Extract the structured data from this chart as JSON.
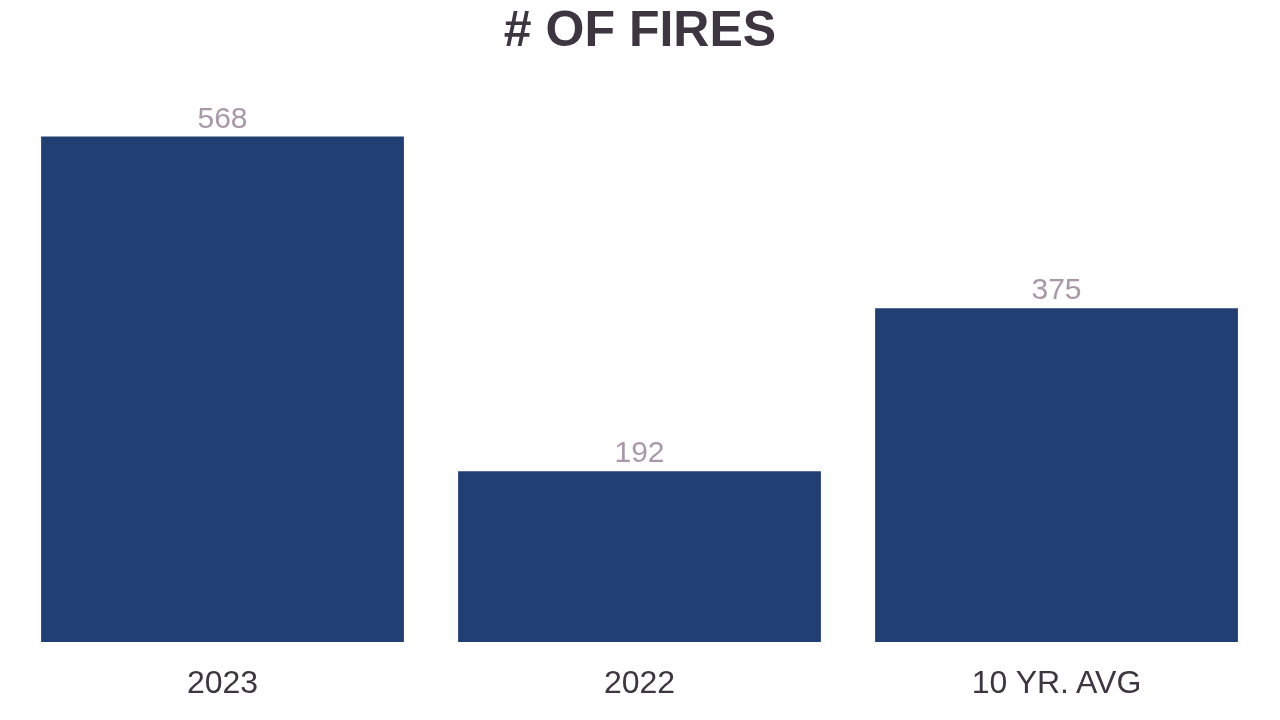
{
  "chart_data": {
    "type": "bar",
    "title": "# OF FIRES",
    "categories": [
      "2023",
      "2022",
      "10 YR. AVG"
    ],
    "values": [
      568,
      192,
      375
    ],
    "color": "#223f73",
    "data_labels": true
  }
}
